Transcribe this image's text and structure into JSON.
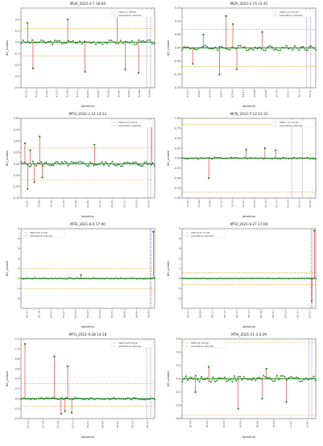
{
  "figure": {
    "background": "#ffffff",
    "colors": {
      "series": "#1a7f1a",
      "anomaly": "#d62728",
      "threshold": "#e3a21a",
      "marker": "#9467bd",
      "zero": "#1a7f1a"
    }
  },
  "chart_data": [
    {
      "type": "line",
      "title": "MOA_2022-2-7 18:04",
      "xlabel": "datetime",
      "ylabel": "ND_volume",
      "ylim": [
        -0.4,
        0.3
      ],
      "yticks": [
        "-0.4",
        "-0.3",
        "-0.2",
        "-0.1",
        "0.0",
        "0.1",
        "0.2"
      ],
      "legend": {
        "placement": "top-right",
        "entries": [
          "2022-2-7 18:04",
          "anomalous volumes"
        ]
      },
      "thresholds": [
        0.12,
        -0.12
      ],
      "marker_x": 0.94,
      "marker_x2": 0.97,
      "baseline": 0.0,
      "noise": 0.02,
      "n": 60,
      "anomalies": [
        {
          "x": 0.05,
          "y": 0.17
        },
        {
          "x": 0.09,
          "y": -0.23
        },
        {
          "x": 0.35,
          "y": 0.2
        },
        {
          "x": 0.48,
          "y": -0.26
        },
        {
          "x": 0.72,
          "y": 0.28
        },
        {
          "x": 0.78,
          "y": -0.24
        },
        {
          "x": 0.88,
          "y": -0.27
        }
      ],
      "xticks": [
        "01-24",
        "01-25",
        "01-26",
        "01-27",
        "01-28",
        "01-31",
        "02-01",
        "02-02",
        "02-03",
        "02-04",
        "02-07",
        "02-08",
        "02-09"
      ]
    },
    {
      "type": "line",
      "title": "MOA_2022-2-15 12:41",
      "xlabel": "datetime",
      "ylabel": "ND_volume",
      "ylim": [
        -0.15,
        0.15
      ],
      "yticks": [
        "-0.15",
        "-0.10",
        "-0.05",
        "0.00",
        "0.05",
        "0.10",
        "0.15"
      ],
      "legend": {
        "placement": "top-right",
        "entries": [
          "2022-2-15 12:41",
          "anomalous volumes"
        ]
      },
      "thresholds": [
        0.07,
        -0.07
      ],
      "marker_x": 0.93,
      "marker_x2": 0.96,
      "baseline": 0.0,
      "noise": 0.01,
      "n": 65,
      "anomalies": [
        {
          "x": 0.08,
          "y": -0.06
        },
        {
          "x": 0.16,
          "y": 0.05
        },
        {
          "x": 0.28,
          "y": -0.1
        },
        {
          "x": 0.33,
          "y": 0.12
        },
        {
          "x": 0.38,
          "y": 0.09
        },
        {
          "x": 0.41,
          "y": -0.08
        },
        {
          "x": 0.6,
          "y": 0.06
        }
      ],
      "xticks": [
        "01-31",
        "02-01",
        "02-02",
        "02-03",
        "02-04",
        "02-07",
        "02-08",
        "02-09",
        "02-10",
        "02-11",
        "02-14",
        "02-15"
      ]
    },
    {
      "type": "line",
      "title": "MTH_2022-2-14 14:12",
      "xlabel": "datetime",
      "ylabel": "ND_volume",
      "ylim": [
        -0.75,
        1.0
      ],
      "yticks": [
        "-0.75",
        "-0.50",
        "-0.25",
        "0.00",
        "0.25",
        "0.50",
        "0.75",
        "1.00"
      ],
      "legend": {
        "placement": "top-right",
        "entries": [
          "2022-2-14 14:12",
          "anomalous volumes"
        ]
      },
      "thresholds": [
        0.35,
        -0.35
      ],
      "marker_x": 0.95,
      "marker_x2": 0.97,
      "baseline": 0.0,
      "noise": 0.06,
      "n": 80,
      "anomalies": [
        {
          "x": 0.03,
          "y": 0.45
        },
        {
          "x": 0.05,
          "y": -0.55
        },
        {
          "x": 0.07,
          "y": 0.3
        },
        {
          "x": 0.1,
          "y": -0.4
        },
        {
          "x": 0.14,
          "y": 0.6
        },
        {
          "x": 0.16,
          "y": -0.3
        },
        {
          "x": 0.55,
          "y": 0.42
        },
        {
          "x": 0.98,
          "y": 0.85
        }
      ],
      "xticks": [
        "12-02",
        "12-09",
        "12-16",
        "12-23",
        "12-30",
        "01-06",
        "01-13",
        "01-20",
        "01-27",
        "02-03",
        "02-10"
      ]
    },
    {
      "type": "line",
      "title": "MCN_2022-7-12 12:33",
      "xlabel": "datetime",
      "ylabel": "ND_volume",
      "ylim": [
        -1.0,
        1.0
      ],
      "yticks": [
        "-1.00",
        "-0.75",
        "-0.50",
        "-0.25",
        "0.00",
        "0.25",
        "0.50",
        "0.75",
        "1.00"
      ],
      "legend": {
        "placement": "top-right",
        "entries": [
          "2022-7-12 12:33",
          "anomalous volumes"
        ]
      },
      "thresholds": [
        0.85,
        -0.85
      ],
      "marker_x": 0.82,
      "marker_x2": 0.9,
      "baseline": 0.0,
      "noise": 0.02,
      "n": 50,
      "anomalies": [
        {
          "x": 0.2,
          "y": -0.5
        },
        {
          "x": 0.48,
          "y": 0.22
        },
        {
          "x": 0.62,
          "y": 0.25
        },
        {
          "x": 0.7,
          "y": 0.2
        }
      ],
      "xticks": [
        "11-22",
        "11-29",
        "12-06",
        "12-13",
        "12-20",
        "12-27",
        "01-03",
        "01-10",
        "01-17",
        "01-24",
        "01-31",
        "02-07"
      ]
    },
    {
      "type": "line",
      "title": "MTH_2021-6-6 17:00",
      "xlabel": "datetime",
      "ylabel": "ND_volume",
      "ylim": [
        -3,
        5
      ],
      "yticks": [
        "-2",
        "-1",
        "0",
        "1",
        "2",
        "3",
        "4",
        "5"
      ],
      "legend": {
        "placement": "top-left",
        "entries": [
          "2021-6-6 17:00",
          "anomalous volumes"
        ]
      },
      "thresholds": [
        1.0,
        -1.0
      ],
      "marker_x": 0.965,
      "marker_x2": 0.975,
      "baseline": 0.0,
      "noise": 0.05,
      "n": 60,
      "anomalies": [
        {
          "x": 0.45,
          "y": 0.35
        },
        {
          "x": 0.99,
          "y": 4.7
        }
      ],
      "xticks": [
        "05-17",
        "05-19",
        "05-21",
        "05-23",
        "05-25",
        "05-27",
        "05-29",
        "05-31",
        "06-02",
        "06-04",
        "06-06"
      ]
    },
    {
      "type": "line",
      "title": "MTH_2021-6-27 17:00",
      "xlabel": "datetime",
      "ylabel": "ND_volume",
      "ylim": [
        -3,
        5
      ],
      "yticks": [
        "-2",
        "-1",
        "0",
        "1",
        "2",
        "3",
        "4",
        "5"
      ],
      "legend": {
        "placement": "top-left",
        "entries": [
          "2021-6-27 17:00",
          "anomalous volumes"
        ]
      },
      "thresholds": [
        0.6,
        -0.6
      ],
      "marker_x": 0.965,
      "marker_x2": 0.975,
      "baseline": 0.0,
      "noise": 0.03,
      "n": 60,
      "anomalies": [
        {
          "x": 0.99,
          "y": 4.8
        },
        {
          "x": 0.97,
          "y": -2.3
        }
      ],
      "xticks": [
        "06-07",
        "06-09",
        "06-11",
        "06-13",
        "06-15",
        "06-17",
        "06-19",
        "06-21",
        "06-23",
        "06-25",
        "06-27"
      ]
    },
    {
      "type": "line",
      "title": "MTH_2021-9-28 14:18",
      "xlabel": "datetime",
      "ylabel": "ND_volume",
      "ylim": [
        -0.4,
        1.2
      ],
      "yticks": [
        "-0.4",
        "-0.2",
        "0.0",
        "0.2",
        "0.4",
        "0.6",
        "0.8",
        "1.0",
        "1.2"
      ],
      "legend": {
        "placement": "top-right",
        "entries": [
          "2021-9-28 14:18",
          "anomalous volumes"
        ]
      },
      "thresholds": [
        0.3,
        -0.15
      ],
      "marker_x": 0.94,
      "marker_x2": 0.97,
      "baseline": 0.0,
      "noise": 0.02,
      "n": 70,
      "anomalies": [
        {
          "x": 0.03,
          "y": 1.1
        },
        {
          "x": 0.25,
          "y": 0.85
        },
        {
          "x": 0.3,
          "y": -0.3
        },
        {
          "x": 0.35,
          "y": 0.65
        },
        {
          "x": 0.33,
          "y": -0.25
        },
        {
          "x": 0.38,
          "y": -0.28
        }
      ],
      "xticks": [
        "27-13",
        "27-16",
        "27-19",
        "27-22",
        "28-01",
        "28-04",
        "28-07",
        "28-10",
        "28-13"
      ]
    },
    {
      "type": "line",
      "title": "MTH_2021-11-3 6:29",
      "xlabel": "datetime",
      "ylabel": "ND_volume",
      "ylim": [
        -0.6,
        0.6
      ],
      "yticks": [
        "-0.6",
        "-0.4",
        "-0.2",
        "0.0",
        "0.2",
        "0.4",
        "0.6"
      ],
      "legend": {
        "placement": "top-left",
        "entries": [
          "2021-11-3 6:29",
          "anomalous volumes"
        ]
      },
      "thresholds": [
        0.55,
        -0.55
      ],
      "marker_x": 0.95,
      "marker_x2": 0.97,
      "baseline": 0.0,
      "noise": 0.05,
      "n": 70,
      "anomalies": [
        {
          "x": 0.1,
          "y": -0.2
        },
        {
          "x": 0.2,
          "y": 0.18
        },
        {
          "x": 0.42,
          "y": -0.45
        },
        {
          "x": 0.6,
          "y": -0.3
        },
        {
          "x": 0.63,
          "y": 0.15
        },
        {
          "x": 0.78,
          "y": -0.35
        }
      ],
      "xticks": [
        "10-20",
        "10-22",
        "10-24",
        "10-26",
        "10-28",
        "10-30",
        "11-01",
        "11-03"
      ]
    }
  ]
}
